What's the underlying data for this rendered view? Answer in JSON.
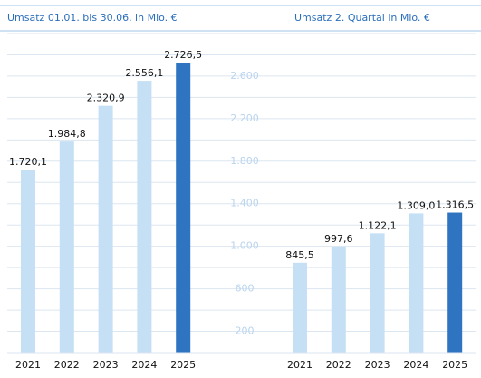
{
  "chart_data": [
    {
      "type": "bar",
      "title": "Umsatz 01.01. bis 30.06. in Mio. €",
      "categories": [
        "2021",
        "2022",
        "2023",
        "2024",
        "2025"
      ],
      "values": [
        1720.1,
        1984.8,
        2320.9,
        2556.1,
        2726.5
      ],
      "value_labels": [
        "1.720,1",
        "1.984,8",
        "2.320,9",
        "2.556,1",
        "2.726,5"
      ],
      "colors": [
        "#c5dff5",
        "#c5dff5",
        "#c5dff5",
        "#c5dff5",
        "#2e74c0"
      ],
      "ylim": [
        0,
        3000
      ],
      "grid": true,
      "gridlines": [
        200,
        400,
        600,
        800,
        1000,
        1200,
        1400,
        1600,
        1800,
        2000,
        2200,
        2400,
        2600,
        2800,
        3000
      ]
    },
    {
      "type": "bar",
      "title": "Umsatz 2. Quartal in Mio. €",
      "categories": [
        "2021",
        "2022",
        "2023",
        "2024",
        "2025"
      ],
      "values": [
        845.5,
        997.6,
        1122.1,
        1309.0,
        1316.5
      ],
      "value_labels": [
        "845,5",
        "997,6",
        "1.122,1",
        "1.309,0",
        "1.316,5"
      ],
      "colors": [
        "#c5dff5",
        "#c5dff5",
        "#c5dff5",
        "#c5dff5",
        "#2e74c0"
      ],
      "ylim": [
        0,
        3000
      ],
      "yticks": [
        200,
        600,
        {
          "value": 1000,
          "label": "1.000"
        },
        {
          "value": 1400,
          "label": "1.400"
        },
        {
          "value": 1800,
          "label": "1.800"
        },
        {
          "value": 2200,
          "label": "2.200"
        },
        {
          "value": 2600,
          "label": "2.600"
        }
      ]
    }
  ]
}
